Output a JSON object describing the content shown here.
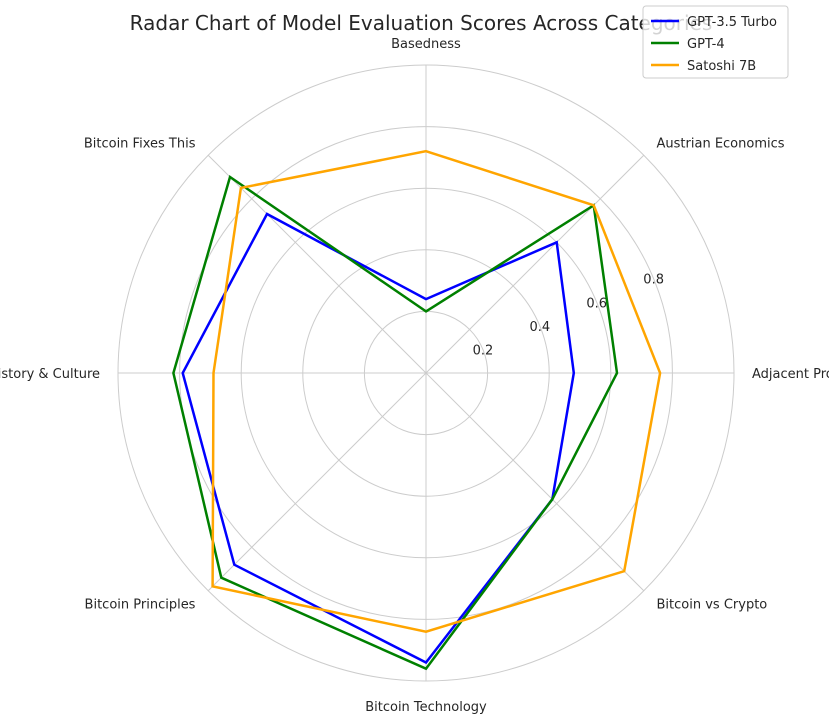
{
  "chart_data": {
    "type": "radar",
    "title": "Radar Chart of Model Evaluation Scores Across Categories",
    "categories": [
      "Basedness",
      "Austrian Economics",
      "Adjacent Protocols",
      "Bitcoin vs Crypto",
      "Bitcoin Technology",
      "Bitcoin Principles",
      "Bitcoin History & Culture",
      "Bitcoin Fixes This"
    ],
    "series": [
      {
        "name": "GPT-3.5 Turbo",
        "color": "#0000ff",
        "values": [
          0.24,
          0.6,
          0.48,
          0.58,
          0.94,
          0.88,
          0.79,
          0.73
        ]
      },
      {
        "name": "GPT-4",
        "color": "#008000",
        "values": [
          0.2,
          0.77,
          0.62,
          0.58,
          0.96,
          0.94,
          0.82,
          0.9
        ]
      },
      {
        "name": "Satoshi 7B",
        "color": "#ffa500",
        "values": [
          0.72,
          0.77,
          0.76,
          0.91,
          0.84,
          0.98,
          0.69,
          0.85
        ]
      }
    ],
    "rlim": [
      0,
      1.0
    ],
    "rticks": [
      0.2,
      0.4,
      0.6,
      0.8
    ],
    "rtick_labels": [
      "0.2",
      "0.4",
      "0.6",
      "0.8"
    ],
    "grid": true,
    "legend_position": "top-right"
  }
}
